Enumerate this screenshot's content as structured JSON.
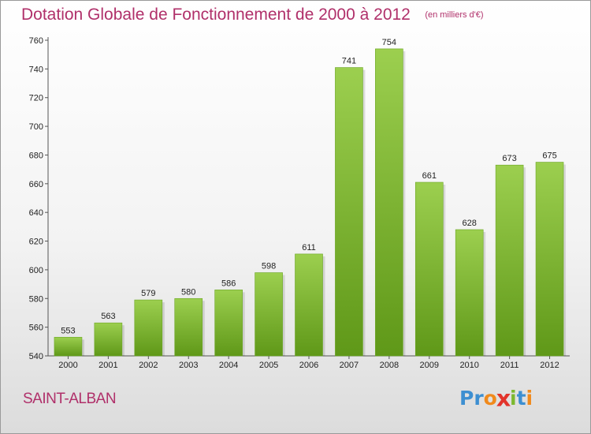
{
  "chart_data": {
    "type": "bar",
    "title": "Dotation Globale de Fonctionnement de 2000 à 2012",
    "unit_note": "(en milliers d'€)",
    "categories": [
      "2000",
      "2001",
      "2002",
      "2003",
      "2004",
      "2005",
      "2006",
      "2007",
      "2008",
      "2009",
      "2010",
      "2011",
      "2012"
    ],
    "values": [
      553,
      563,
      579,
      580,
      586,
      598,
      611,
      741,
      754,
      661,
      628,
      673,
      675
    ],
    "ylim": [
      540,
      760
    ],
    "yticks": [
      540,
      560,
      580,
      600,
      620,
      640,
      660,
      680,
      700,
      720,
      740,
      760
    ],
    "grid": false,
    "bar_color_top": "#9ccf4f",
    "bar_color_bottom": "#5f9818"
  },
  "footer": {
    "commune": "SAINT-ALBAN",
    "logo_letters": [
      {
        "ch": "P",
        "color": "#3d8fd1"
      },
      {
        "ch": "r",
        "color": "#3d8fd1"
      },
      {
        "ch": "o",
        "color": "#f08a1c"
      },
      {
        "ch": "x",
        "color": "#e2342b"
      },
      {
        "ch": "i",
        "color": "#7cb82f"
      },
      {
        "ch": "t",
        "color": "#3d8fd1"
      },
      {
        "ch": "i",
        "color": "#f08a1c"
      }
    ]
  }
}
